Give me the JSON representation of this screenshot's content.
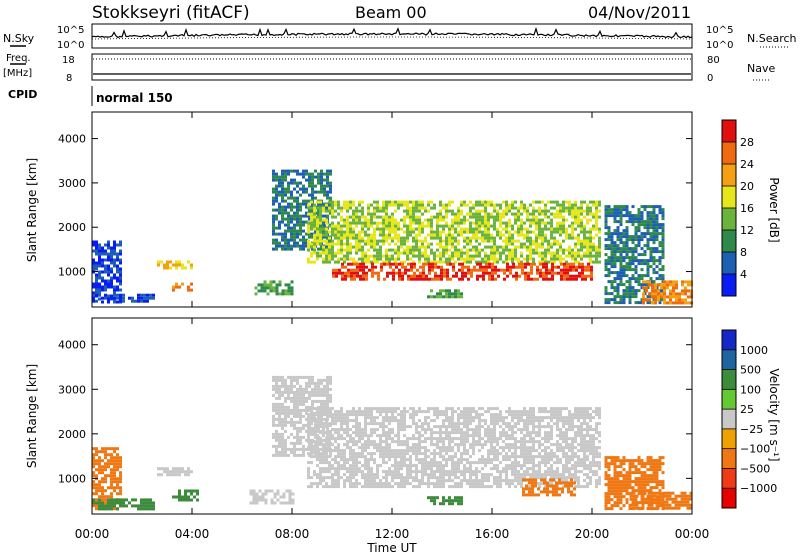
{
  "header": {
    "station": "Stokkseyri (fitACF)",
    "beam": "Beam 00",
    "date": "04/Nov/2011"
  },
  "panels": {
    "nsky": {
      "label": "N.Sky",
      "left_ticks": [
        "10^5",
        "10^0"
      ],
      "right_ticks": [
        "10^5",
        "10^0"
      ],
      "right_label": "N.Search"
    },
    "freq": {
      "label": "Freq.",
      "unit": "[MHz]",
      "left_ticks": [
        "18",
        "8"
      ],
      "right_ticks": [
        "80",
        "0"
      ],
      "right_label": "Nave"
    },
    "cpid": {
      "label": "CPID",
      "value": "normal 150"
    }
  },
  "colorbars": {
    "power": {
      "label": "Power [dB]",
      "ticks": [
        "28",
        "24",
        "20",
        "16",
        "12",
        "8",
        "4"
      ],
      "colors": [
        "#0a1cf5",
        "#1d5fb4",
        "#2e8a4a",
        "#6ab33c",
        "#e6e61a",
        "#f5a012",
        "#f06a10",
        "#e01010"
      ]
    },
    "velocity": {
      "label": "Velocity [m s⁻¹]",
      "ticks": [
        "1000",
        "500",
        "100",
        "25",
        "−25",
        "−100",
        "−500",
        "−1000"
      ],
      "colors": [
        "#1428c8",
        "#1e64a0",
        "#3c8c3c",
        "#64c832",
        "#c8c8c8",
        "#f0a000",
        "#f07814",
        "#f03c14",
        "#e60000"
      ]
    }
  },
  "chart_data": [
    {
      "type": "heatmap",
      "name": "power",
      "ylabel": "Slant Range [km]",
      "ylim": [
        200,
        4600
      ],
      "yticks": [
        "1000",
        "2000",
        "3000",
        "4000"
      ],
      "xlim": [
        0,
        24
      ],
      "xticks": [
        "00:00",
        "04:00",
        "08:00",
        "12:00",
        "16:00",
        "20:00",
        "00:00"
      ],
      "regions": [
        {
          "t0": 0.0,
          "t1": 1.2,
          "r0": 300,
          "r1": 1700,
          "level": 4
        },
        {
          "t0": 0.0,
          "t1": 2.5,
          "r0": 300,
          "r1": 500,
          "level": 4
        },
        {
          "t0": 2.6,
          "t1": 4.0,
          "r0": 1050,
          "r1": 1250,
          "level": 20
        },
        {
          "t0": 3.2,
          "t1": 4.0,
          "r0": 550,
          "r1": 750,
          "level": 24
        },
        {
          "t0": 6.5,
          "t1": 8.0,
          "r0": 500,
          "r1": 800,
          "level": 12
        },
        {
          "t0": 7.2,
          "t1": 9.6,
          "r0": 1500,
          "r1": 3300,
          "level": 8
        },
        {
          "t0": 8.6,
          "t1": 20.3,
          "r0": 1200,
          "r1": 2600,
          "level": 16
        },
        {
          "t0": 9.6,
          "t1": 20.0,
          "r0": 800,
          "r1": 1200,
          "level": 28
        },
        {
          "t0": 13.4,
          "t1": 14.8,
          "r0": 400,
          "r1": 600,
          "level": 12
        },
        {
          "t0": 20.5,
          "t1": 22.8,
          "r0": 300,
          "r1": 2500,
          "level": 8
        },
        {
          "t0": 22.0,
          "t1": 24.0,
          "r0": 300,
          "r1": 800,
          "level": 24
        }
      ]
    },
    {
      "type": "heatmap",
      "name": "velocity",
      "xlabel": "Time UT",
      "ylabel": "Slant Range [km]",
      "ylim": [
        200,
        4600
      ],
      "yticks": [
        "1000",
        "2000",
        "3000",
        "4000"
      ],
      "xlim": [
        0,
        24
      ],
      "xticks": [
        "00:00",
        "04:00",
        "08:00",
        "12:00",
        "16:00",
        "20:00",
        "00:00"
      ],
      "regions": [
        {
          "t0": 0.0,
          "t1": 1.2,
          "r0": 300,
          "r1": 1700,
          "level": -300
        },
        {
          "t0": 0.0,
          "t1": 2.5,
          "r0": 300,
          "r1": 550,
          "level": 100
        },
        {
          "t0": 2.6,
          "t1": 4.0,
          "r0": 1050,
          "r1": 1250,
          "level": 0
        },
        {
          "t0": 3.2,
          "t1": 4.2,
          "r0": 500,
          "r1": 750,
          "level": 100
        },
        {
          "t0": 6.3,
          "t1": 8.0,
          "r0": 450,
          "r1": 750,
          "level": 0
        },
        {
          "t0": 7.2,
          "t1": 9.6,
          "r0": 1500,
          "r1": 3300,
          "level": 0
        },
        {
          "t0": 8.6,
          "t1": 20.3,
          "r0": 800,
          "r1": 2600,
          "level": 0
        },
        {
          "t0": 13.4,
          "t1": 14.8,
          "r0": 400,
          "r1": 600,
          "level": 100
        },
        {
          "t0": 17.2,
          "t1": 19.3,
          "r0": 600,
          "r1": 1000,
          "level": -300
        },
        {
          "t0": 20.5,
          "t1": 22.8,
          "r0": 300,
          "r1": 1500,
          "level": -300
        },
        {
          "t0": 21.5,
          "t1": 24.0,
          "r0": 300,
          "r1": 700,
          "level": -300
        }
      ]
    }
  ]
}
